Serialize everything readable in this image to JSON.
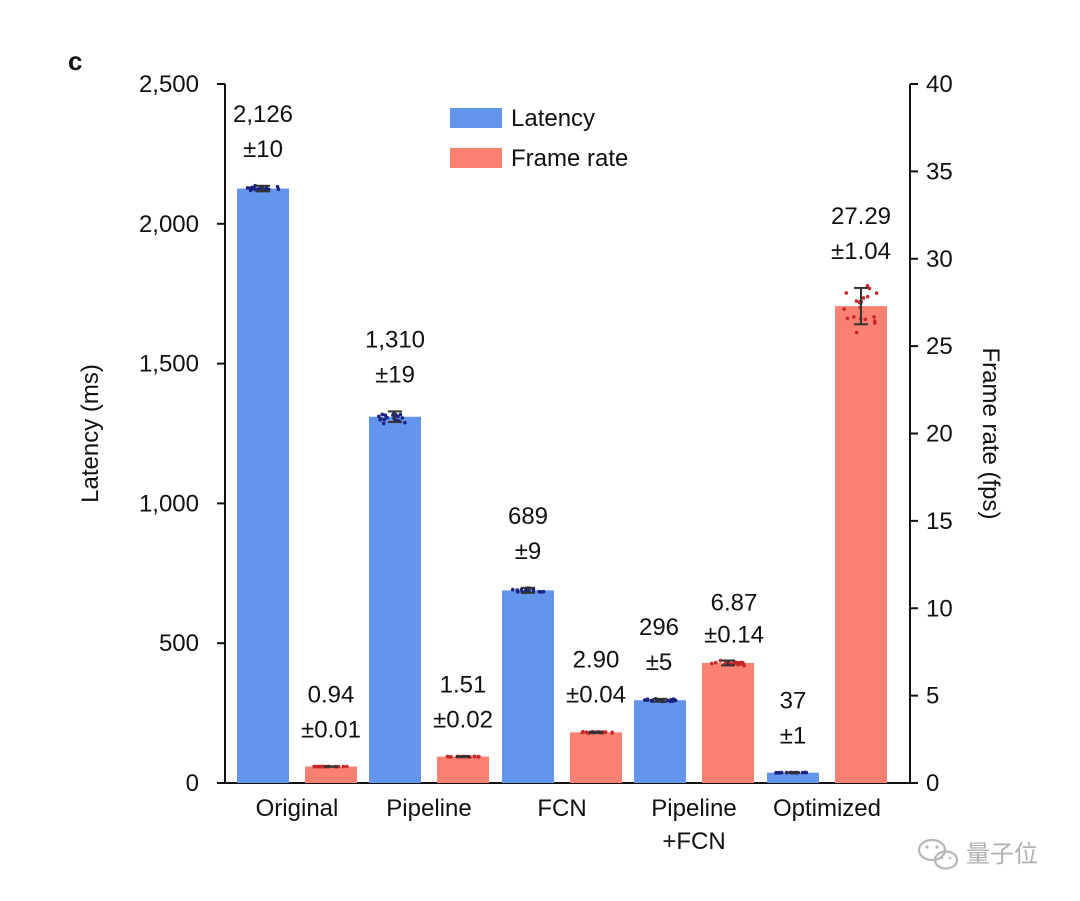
{
  "panel_label": "c",
  "watermark": "量子位",
  "colors": {
    "latency": "#6495ed",
    "frame_rate": "#fa8072",
    "latency_points": "#1a237e",
    "frame_rate_points": "#c62828",
    "axis": "#111111"
  },
  "chart_data": {
    "type": "bar",
    "categories": [
      "Original",
      "Pipeline",
      "FCN",
      "Pipeline +FCN",
      "Optimized"
    ],
    "category_labels": [
      [
        "Original"
      ],
      [
        "Pipeline"
      ],
      [
        "FCN"
      ],
      [
        "Pipeline",
        "+FCN"
      ],
      [
        "Optimized"
      ]
    ],
    "series": [
      {
        "name": "Latency",
        "axis": "left",
        "values": [
          2126,
          1310,
          689,
          296,
          37
        ],
        "errors": [
          10,
          19,
          9,
          5,
          1
        ],
        "labels": [
          [
            "2,126",
            "±10"
          ],
          [
            "1,310",
            "±19"
          ],
          [
            "689",
            "±9"
          ],
          [
            "296",
            "±5"
          ],
          [
            "37",
            "±1"
          ]
        ]
      },
      {
        "name": "Frame rate",
        "axis": "right",
        "values": [
          0.94,
          1.51,
          2.9,
          6.87,
          27.29
        ],
        "errors": [
          0.01,
          0.02,
          0.04,
          0.14,
          1.04
        ],
        "labels": [
          [
            "0.94",
            "±0.01"
          ],
          [
            "1.51",
            "±0.02"
          ],
          [
            "2.90",
            "±0.04"
          ],
          [
            "6.87",
            "±0.14"
          ],
          [
            "27.29",
            "±1.04"
          ]
        ]
      }
    ],
    "ylabel": "Latency (ms)",
    "ylabel_right": "Frame rate (fps)",
    "ylim": [
      0,
      2500
    ],
    "ylim_right": [
      0,
      40
    ],
    "yticks": [
      0,
      500,
      1000,
      1500,
      2000,
      2500
    ],
    "yticks_labels": [
      "0",
      "500",
      "1,000",
      "1,500",
      "2,000",
      "2,500"
    ],
    "yticks_right": [
      0,
      5,
      10,
      15,
      20,
      25,
      30,
      35,
      40
    ],
    "yticks_right_labels": [
      "0",
      "5",
      "10",
      "15",
      "20",
      "25",
      "30",
      "35",
      "40"
    ],
    "legend": {
      "position": "top-center",
      "entries": [
        "Latency",
        "Frame rate"
      ]
    },
    "grid": false
  }
}
